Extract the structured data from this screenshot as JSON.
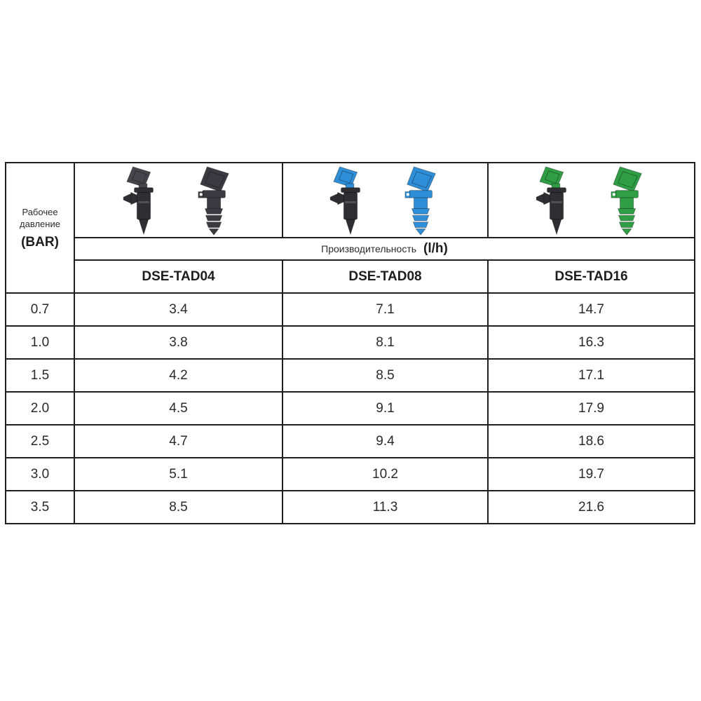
{
  "table": {
    "border_color": "#1f1f1f",
    "pressure_header": {
      "line1": "Рабочее",
      "line2": "давление",
      "unit": "(BAR)"
    },
    "capacity": {
      "label": "Производительность",
      "unit": "(l/h)"
    },
    "products": [
      {
        "model": "DSE-TAD04",
        "flag_color": "#45454b",
        "accent_color": "#3a3a40",
        "body_color": "#2e2e33"
      },
      {
        "model": "DSE-TAD08",
        "flag_color": "#2f8ed8",
        "accent_color": "#2f8ed8",
        "body_color": "#2e2e33"
      },
      {
        "model": "DSE-TAD16",
        "flag_color": "#2f9e45",
        "accent_color": "#2f9e45",
        "body_color": "#2e2e33"
      }
    ],
    "rows": [
      {
        "pressure": "0.7",
        "values": [
          "3.4",
          "7.1",
          "14.7"
        ]
      },
      {
        "pressure": "1.0",
        "values": [
          "3.8",
          "8.1",
          "16.3"
        ]
      },
      {
        "pressure": "1.5",
        "values": [
          "4.2",
          "8.5",
          "17.1"
        ]
      },
      {
        "pressure": "2.0",
        "values": [
          "4.5",
          "9.1",
          "17.9"
        ]
      },
      {
        "pressure": "2.5",
        "values": [
          "4.7",
          "9.4",
          "18.6"
        ]
      },
      {
        "pressure": "3.0",
        "values": [
          "5.1",
          "10.2",
          "19.7"
        ]
      },
      {
        "pressure": "3.5",
        "values": [
          "8.5",
          "11.3",
          "21.6"
        ]
      }
    ]
  }
}
